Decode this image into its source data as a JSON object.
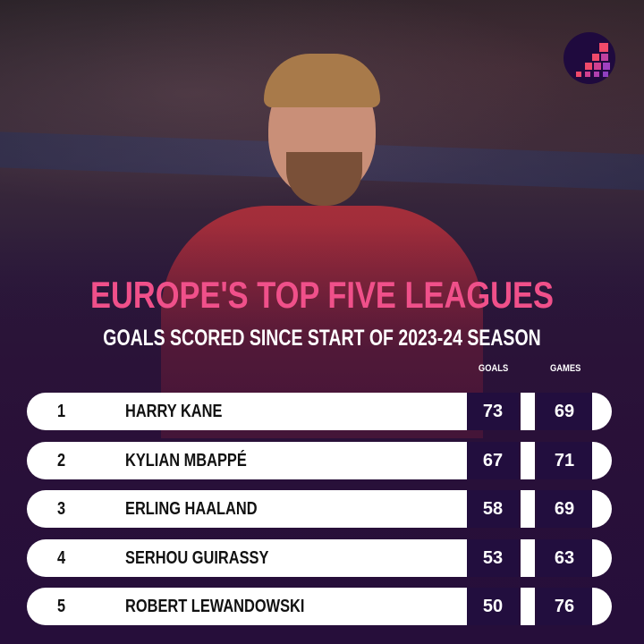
{
  "title": "EUROPE'S TOP FIVE LEAGUES",
  "subtitle": "GOALS SCORED SINCE START OF 2023-24 SEASON",
  "columns": {
    "goals": "GOALS",
    "games": "GAMES"
  },
  "colors": {
    "title": "#f0508a",
    "cell": "#220e3e",
    "row": "#ffffff"
  },
  "logo_icon": "bar-steps-logo",
  "rows": [
    {
      "rank": "1",
      "name": "HARRY KANE",
      "goals": "73",
      "games": "69"
    },
    {
      "rank": "2",
      "name": "KYLIAN MBAPPÉ",
      "goals": "67",
      "games": "71"
    },
    {
      "rank": "3",
      "name": "ERLING HAALAND",
      "goals": "58",
      "games": "69"
    },
    {
      "rank": "4",
      "name": "SERHOU GUIRASSY",
      "goals": "53",
      "games": "63"
    },
    {
      "rank": "5",
      "name": "ROBERT LEWANDOWSKI",
      "goals": "50",
      "games": "76"
    }
  ]
}
